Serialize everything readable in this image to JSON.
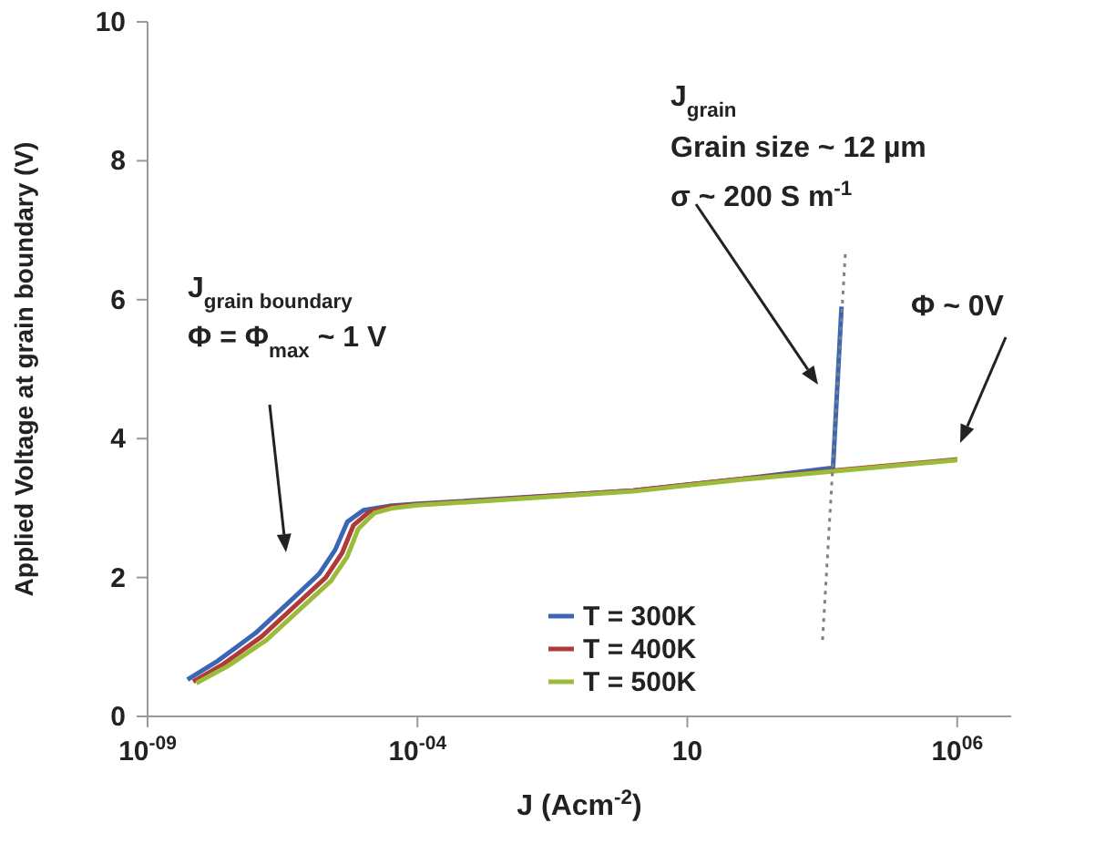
{
  "chart_data": {
    "type": "line",
    "xlabel": "J (Acm$^{-2}$)",
    "ylabel": "Applied Voltage at grain boundary (V)",
    "log": "x",
    "xlim": [
      1e-09,
      10000000.0
    ],
    "xticks": [
      {
        "value": 1e-09,
        "label": "10$^{-09}$"
      },
      {
        "value": 0.0001,
        "label": "10$^{-04}$"
      },
      10,
      {
        "value": 1000000,
        "label": "10$^{06}$"
      }
    ],
    "ylim": [
      0,
      10
    ],
    "yticks": [
      0,
      2,
      4,
      6,
      8,
      10
    ],
    "legend": "bottom",
    "marker": "none",
    "line_style": "solid",
    "series": [
      {
        "name": "T = 300K",
        "color": "#3a66b5",
        "x": [
          5.5e-09,
          2e-08,
          1e-07,
          5e-07,
          1.5e-06,
          3e-06,
          5e-06,
          1e-05,
          3e-05,
          0.0001,
          1,
          100,
          5000,
          7200
        ],
        "values": [
          0.53,
          0.8,
          1.2,
          1.7,
          2.05,
          2.4,
          2.8,
          2.97,
          3.03,
          3.06,
          3.25,
          3.42,
          3.58,
          5.9
        ]
      },
      {
        "name": "T = 400K",
        "color": "#b03a3a",
        "x": [
          7e-09,
          2.5e-08,
          1.3e-07,
          6.5e-07,
          2e-06,
          4e-06,
          6.5e-06,
          1.3e-05,
          3e-05,
          0.0001,
          1,
          100,
          1000000
        ],
        "values": [
          0.5,
          0.75,
          1.15,
          1.65,
          2.0,
          2.35,
          2.75,
          2.95,
          3.02,
          3.05,
          3.25,
          3.42,
          3.7
        ]
      },
      {
        "name": "T = 500K",
        "color": "#9bbb3a",
        "x": [
          8e-09,
          3e-08,
          1.6e-07,
          8e-07,
          2.5e-06,
          5e-06,
          8e-06,
          1.6e-05,
          3.5e-05,
          0.0001,
          1,
          100,
          1000000
        ],
        "values": [
          0.48,
          0.72,
          1.1,
          1.6,
          1.95,
          2.3,
          2.7,
          2.93,
          3.0,
          3.04,
          3.24,
          3.41,
          3.69
        ]
      },
      {
        "color": "#808080",
        "line_style": "dotted",
        "x": [
          3200,
          8500
        ],
        "values": [
          1.1,
          6.7
        ]
      }
    ],
    "annotations": [
      "J$_{grain boundary}$",
      "Φ = Φ$_{max}$ ~  1 V",
      "J$_{grain}$",
      "Grain size ~ 12 µm",
      "σ ~ 200 S m$^{-1}$",
      "Φ ~ 0V"
    ]
  }
}
